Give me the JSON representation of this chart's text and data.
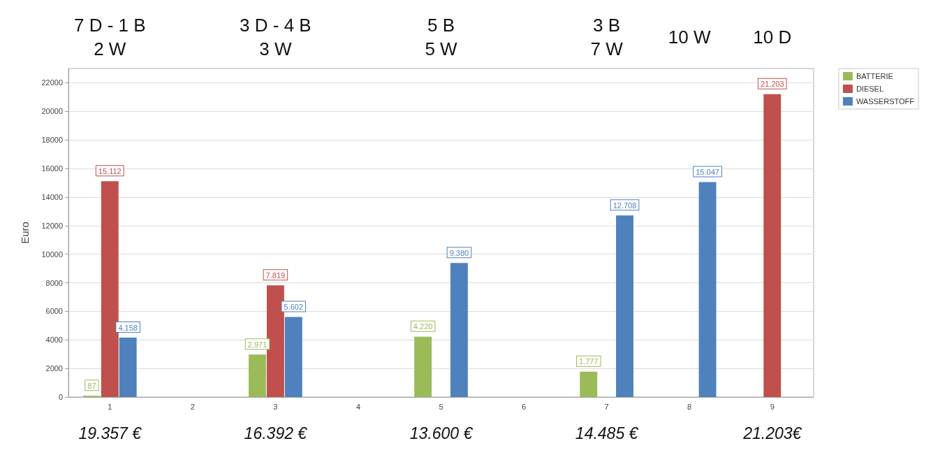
{
  "chart_data": {
    "type": "bar",
    "ylabel": "Euro",
    "categories": [
      "1",
      "2",
      "3",
      "4",
      "5",
      "6",
      "7",
      "8",
      "9"
    ],
    "series": [
      {
        "name": "BATTERIE",
        "color": "#9bbb59",
        "values": [
          87,
          null,
          2971,
          null,
          4220,
          null,
          1777,
          null,
          null
        ],
        "value_labels": [
          "87",
          null,
          "2.971",
          null,
          "4.220",
          null,
          "1.777",
          null,
          null
        ]
      },
      {
        "name": "DIESEL",
        "color": "#c0504d",
        "values": [
          15112,
          null,
          7819,
          null,
          null,
          null,
          null,
          null,
          21203
        ],
        "value_labels": [
          "15.112",
          null,
          "7.819",
          null,
          null,
          null,
          null,
          null,
          "21.203"
        ]
      },
      {
        "name": "WASSERSTOFF",
        "color": "#4f81bd",
        "values": [
          4158,
          null,
          5602,
          null,
          9380,
          null,
          12708,
          15047,
          null
        ],
        "value_labels": [
          "4.158",
          null,
          "5.602",
          null,
          "9.380",
          null,
          "12.708",
          "15.047",
          null
        ]
      }
    ],
    "ylim": [
      0,
      23000
    ],
    "yticks": [
      0,
      2000,
      4000,
      6000,
      8000,
      10000,
      12000,
      14000,
      16000,
      18000,
      20000,
      22000
    ],
    "grid": "y",
    "legend": "top right",
    "annotations": [
      "7 D - 1 B\n2 W",
      "3 D - 4 B\n3 W",
      "5 B\n5 W",
      "3 B\n7 W",
      "10 W",
      "10 D"
    ],
    "totals": [
      "19.357 €",
      null,
      "16.392 €",
      null,
      "13.600 €",
      null,
      "14.485 €",
      null,
      "21.203€"
    ]
  }
}
